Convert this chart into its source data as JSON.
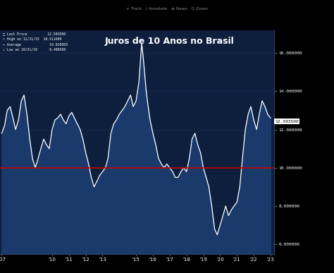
{
  "title": "Juros de 10 Anos no Brasil",
  "title_fontsize": 9,
  "title_color": "white",
  "background_color": "#000000",
  "plot_bg_color": "#0d1f3c",
  "line_color": "white",
  "fill_color": "#1a3a6b",
  "hline_value": 10.0,
  "hline_color": "#cc0000",
  "last_price": 12.5935,
  "last_price_label": "12.593500",
  "y_min": 5.5,
  "y_max": 17.2,
  "yticks": [
    6.0,
    8.0,
    10.0,
    12.0,
    14.0,
    16.0
  ],
  "ytick_labels": [
    "6.000000",
    "8.000000",
    "10.000000",
    "12.000000",
    "14.000000",
    "16.000000"
  ],
  "x_values": [
    2007.0,
    2007.17,
    2007.33,
    2007.5,
    2007.67,
    2007.83,
    2008.0,
    2008.17,
    2008.33,
    2008.5,
    2008.67,
    2008.83,
    2009.0,
    2009.17,
    2009.33,
    2009.5,
    2009.67,
    2009.83,
    2010.0,
    2010.17,
    2010.33,
    2010.5,
    2010.67,
    2010.83,
    2011.0,
    2011.17,
    2011.33,
    2011.5,
    2011.67,
    2011.83,
    2012.0,
    2012.17,
    2012.33,
    2012.5,
    2012.67,
    2012.83,
    2013.0,
    2013.17,
    2013.33,
    2013.5,
    2013.67,
    2013.83,
    2014.0,
    2014.17,
    2014.33,
    2014.5,
    2014.67,
    2014.83,
    2015.0,
    2015.17,
    2015.25,
    2015.33,
    2015.42,
    2015.5,
    2015.58,
    2015.67,
    2015.75,
    2015.83,
    2016.0,
    2016.17,
    2016.33,
    2016.5,
    2016.67,
    2016.83,
    2017.0,
    2017.17,
    2017.33,
    2017.5,
    2017.67,
    2017.83,
    2018.0,
    2018.17,
    2018.33,
    2018.5,
    2018.67,
    2018.83,
    2019.0,
    2019.17,
    2019.33,
    2019.5,
    2019.67,
    2019.83,
    2020.0,
    2020.17,
    2020.33,
    2020.5,
    2020.67,
    2020.83,
    2021.0,
    2021.17,
    2021.33,
    2021.5,
    2021.67,
    2021.83,
    2022.0,
    2022.17,
    2022.33,
    2022.5,
    2022.67,
    2022.83,
    2023.0
  ],
  "y_values": [
    11.8,
    12.2,
    13.0,
    13.2,
    12.6,
    12.0,
    12.5,
    13.5,
    13.8,
    12.8,
    11.5,
    10.5,
    10.0,
    10.5,
    11.0,
    11.5,
    11.2,
    11.0,
    12.0,
    12.5,
    12.6,
    12.8,
    12.5,
    12.3,
    12.7,
    12.9,
    12.6,
    12.3,
    12.0,
    11.5,
    10.8,
    10.2,
    9.5,
    9.0,
    9.3,
    9.6,
    9.8,
    10.0,
    10.5,
    11.8,
    12.3,
    12.5,
    12.8,
    13.0,
    13.2,
    13.5,
    13.8,
    13.2,
    13.5,
    14.5,
    15.5,
    16.5,
    15.8,
    15.0,
    14.2,
    13.5,
    13.0,
    12.5,
    11.8,
    11.2,
    10.5,
    10.2,
    10.0,
    10.2,
    10.0,
    9.8,
    9.5,
    9.5,
    9.8,
    10.0,
    9.8,
    10.5,
    11.5,
    11.8,
    11.2,
    10.8,
    10.0,
    9.5,
    9.0,
    8.0,
    6.8,
    6.5,
    7.0,
    7.5,
    8.0,
    7.5,
    7.8,
    8.0,
    8.2,
    9.0,
    10.5,
    12.0,
    12.8,
    13.2,
    12.5,
    12.0,
    12.8,
    13.5,
    13.2,
    12.8,
    12.6
  ],
  "xtick_positions": [
    2007,
    2010,
    2011,
    2012,
    2013,
    2015,
    2016,
    2017,
    2018,
    2019,
    2020,
    2021,
    2022,
    2023
  ],
  "xtick_labels": [
    "'07",
    "'10",
    "'11",
    "'12",
    "'13",
    "'15",
    "'16",
    "'17",
    "'18",
    "'19",
    "'20",
    "'21",
    "'22",
    "'23"
  ]
}
